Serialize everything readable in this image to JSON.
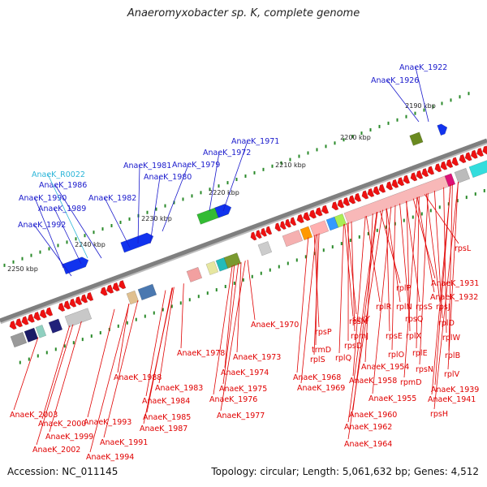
{
  "title": "Anaeromyxobacter sp. K, complete genome",
  "footer": {
    "accession": "Accession: NC_011145",
    "topology": "Topology: circular; Length: 5,061,632 bp; Genes: 4,512"
  },
  "colors": {
    "backbone": "#7f7f7f",
    "red_label": "#e00000",
    "blue_label": "#1a1acc",
    "cyan_label": "#2bb5d8",
    "tick": "#2a8a2a"
  },
  "kbp_ticks": [
    "2190 kbp",
    "2200 kbp",
    "2210 kbp",
    "2220 kbp",
    "2230 kbp",
    "2240 kbp",
    "2250 kbp"
  ],
  "blue_labels": [
    "AnaeK_1922",
    "AnaeK_1926",
    "AnaeK_1971",
    "AnaeK_1972",
    "AnaeK_1979",
    "AnaeK_1981",
    "AnaeK_1980",
    "AnaeK_1986",
    "AnaeK_1982",
    "AnaeK_1990",
    "AnaeK_1989",
    "AnaeK_1992"
  ],
  "cyan_labels": [
    "AnaeK_R0022"
  ],
  "red_labels": [
    "rpsL",
    "AnaeK_1931",
    "rplP",
    "AnaeK_1932",
    "rplR",
    "rplN",
    "rpsS",
    "rpsJ",
    "secY",
    "rpsQ",
    "rplD",
    "rpsM",
    "rplX",
    "rplW",
    "AnaeK_1970",
    "rpsP",
    "rpmJ",
    "rpsE",
    "rplE",
    "rpsD",
    "rplB",
    "trmD",
    "rplO",
    "rpsN",
    "rplS",
    "rplQ",
    "AnaeK_1954",
    "rplV",
    "AnaeK_1968",
    "rpmD",
    "AnaeK_1958",
    "AnaeK_1939",
    "AnaeK_1969",
    "AnaeK_1941",
    "AnaeK_1955",
    "rpsH",
    "AnaeK_1960",
    "AnaeK_1962",
    "AnaeK_1964",
    "AnaeK_1978",
    "AnaeK_1973",
    "AnaeK_1974",
    "AnaeK_1975",
    "AnaeK_1976",
    "AnaeK_1977",
    "AnaeK_1988",
    "AnaeK_1983",
    "AnaeK_1984",
    "AnaeK_1985",
    "AnaeK_1987",
    "AnaeK_1993",
    "AnaeK_1991",
    "AnaeK_1994",
    "AnaeK_2003",
    "AnaeK_2000",
    "AnaeK_1999",
    "AnaeK_2002"
  ]
}
